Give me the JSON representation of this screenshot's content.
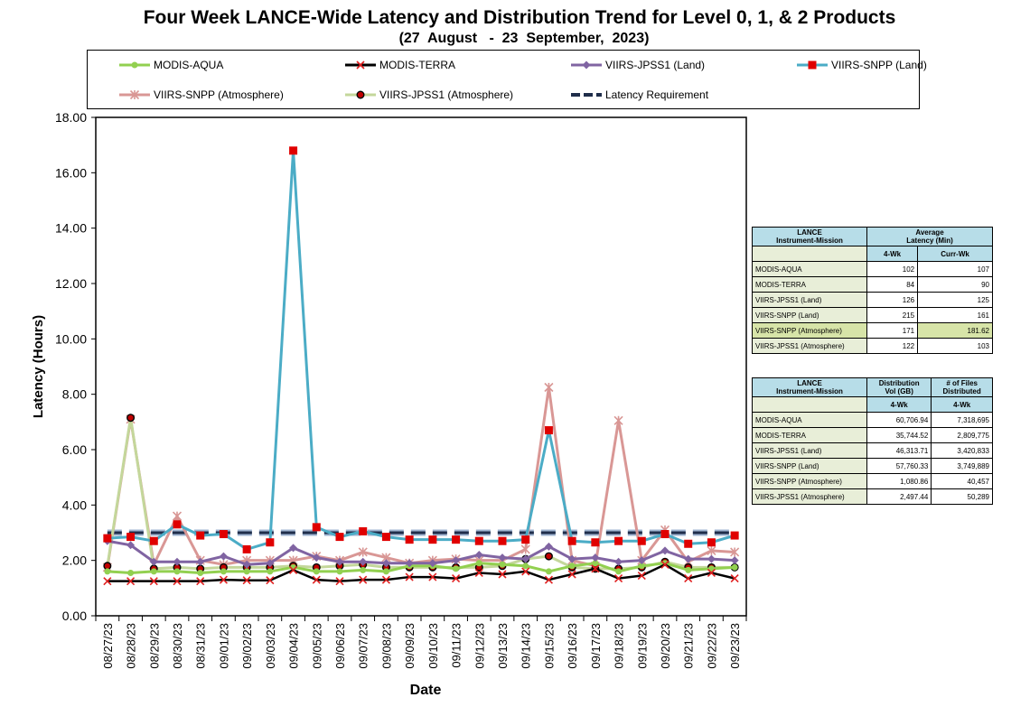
{
  "chart_data": {
    "type": "line",
    "title": "Four Week LANCE-Wide Latency and Distribution Trend for Level 0, 1, & 2 Products",
    "subtitle": "(27  August   -  23  September,  2023)",
    "xlabel": "Date",
    "ylabel": "Latency (Hours)",
    "ylim": [
      0,
      18
    ],
    "yticks": [
      "0.00",
      "2.00",
      "4.00",
      "6.00",
      "8.00",
      "10.00",
      "12.00",
      "14.00",
      "16.00",
      "18.00"
    ],
    "grid": false,
    "legend_position": "top",
    "categories": [
      "08/27/23",
      "08/28/23",
      "08/29/23",
      "08/30/23",
      "08/31/23",
      "09/01/23",
      "09/02/23",
      "09/03/23",
      "09/04/23",
      "09/05/23",
      "09/06/23",
      "09/07/23",
      "09/08/23",
      "09/09/23",
      "09/10/23",
      "09/11/23",
      "09/12/23",
      "09/13/23",
      "09/14/23",
      "09/15/23",
      "09/16/23",
      "09/17/23",
      "09/18/23",
      "09/19/23",
      "09/20/23",
      "09/21/23",
      "09/22/23",
      "09/23/23"
    ],
    "series": [
      {
        "name": "MODIS-AQUA",
        "color": "#92d050",
        "marker": "circle",
        "values": [
          1.6,
          1.55,
          1.6,
          1.6,
          1.55,
          1.6,
          1.6,
          1.6,
          1.75,
          1.6,
          1.6,
          1.65,
          1.6,
          1.8,
          1.8,
          1.7,
          1.9,
          1.85,
          1.8,
          1.6,
          1.8,
          1.9,
          1.6,
          1.8,
          1.9,
          1.65,
          1.7,
          1.75
        ]
      },
      {
        "name": "MODIS-TERRA",
        "color": "#000000",
        "marker": "x",
        "values": [
          1.25,
          1.25,
          1.25,
          1.25,
          1.25,
          1.3,
          1.28,
          1.28,
          1.65,
          1.3,
          1.25,
          1.3,
          1.3,
          1.4,
          1.4,
          1.35,
          1.55,
          1.5,
          1.6,
          1.3,
          1.5,
          1.7,
          1.35,
          1.45,
          1.85,
          1.35,
          1.55,
          1.35
        ]
      },
      {
        "name": "VIIRS-JPSS1 (Land)",
        "color": "#8064a2",
        "marker": "diamond",
        "values": [
          2.7,
          2.55,
          1.95,
          1.95,
          1.95,
          2.15,
          1.85,
          1.9,
          2.45,
          2.1,
          1.95,
          1.95,
          1.9,
          1.9,
          1.9,
          2.0,
          2.2,
          2.1,
          2.05,
          2.5,
          2.05,
          2.1,
          1.95,
          2.0,
          2.35,
          2.05,
          2.05,
          2.0
        ]
      },
      {
        "name": "VIIRS-SNPP (Land)",
        "color": "#4bacc6",
        "marker": "square",
        "values": [
          2.8,
          2.85,
          2.7,
          3.3,
          2.9,
          2.95,
          2.4,
          2.65,
          16.8,
          3.2,
          2.85,
          3.05,
          2.85,
          2.75,
          2.75,
          2.75,
          2.7,
          2.7,
          2.75,
          6.7,
          2.7,
          2.65,
          2.7,
          2.7,
          2.95,
          2.6,
          2.65,
          2.9
        ]
      },
      {
        "name": "VIIRS-SNPP (Atmosphere)",
        "color": "#d99795",
        "marker": "star",
        "values": [
          1.75,
          7.1,
          1.85,
          3.6,
          2.0,
          1.85,
          2.0,
          2.0,
          2.0,
          2.15,
          2.0,
          2.3,
          2.1,
          1.9,
          2.0,
          2.05,
          2.0,
          2.0,
          2.4,
          8.25,
          2.0,
          1.8,
          7.05,
          2.0,
          3.1,
          1.95,
          2.35,
          2.3
        ]
      },
      {
        "name": "VIIRS-JPSS1 (Atmosphere)",
        "color": "#c4d79b",
        "marker": "dot",
        "values": [
          1.8,
          7.15,
          1.7,
          1.75,
          1.7,
          1.75,
          1.75,
          1.75,
          1.8,
          1.75,
          1.8,
          1.85,
          1.75,
          1.75,
          1.75,
          1.75,
          1.75,
          1.8,
          2.05,
          2.15,
          1.75,
          1.7,
          1.7,
          1.75,
          1.95,
          1.75,
          1.75,
          1.75
        ]
      },
      {
        "name": "Latency Requirement",
        "color": "#1f3864",
        "marker": "dash",
        "values": [
          3,
          3,
          3,
          3,
          3,
          3,
          3,
          3,
          3,
          3,
          3,
          3,
          3,
          3,
          3,
          3,
          3,
          3,
          3,
          3,
          3,
          3,
          3,
          3,
          3,
          3,
          3,
          3
        ]
      }
    ]
  },
  "latency_table": {
    "col_header": "LANCE\nInstrument-Mission",
    "group_header": "Average\nLatency (Min)",
    "sub_headers": [
      "4-Wk",
      "Curr-Wk"
    ],
    "rows": [
      {
        "name": "MODIS-AQUA",
        "v1": "102",
        "v2": "107"
      },
      {
        "name": "MODIS-TERRA",
        "v1": "84",
        "v2": "90"
      },
      {
        "name": "VIIRS-JPSS1 (Land)",
        "v1": "126",
        "v2": "125"
      },
      {
        "name": "VIIRS-SNPP (Land)",
        "v1": "215",
        "v2": "161"
      },
      {
        "name": "VIIRS-SNPP (Atmosphere)",
        "v1": "171",
        "v2": "181.62"
      },
      {
        "name": "VIIRS-JPSS1 (Atmosphere)",
        "v1": "122",
        "v2": "103"
      }
    ]
  },
  "distribution_table": {
    "col_header": "LANCE\nInstrument-Mission",
    "header1": "Distribution\nVol (GB)",
    "header2": "# of Files\nDistributed",
    "sub_headers": [
      "4-Wk",
      "4-Wk"
    ],
    "rows": [
      {
        "name": "MODIS-AQUA",
        "v1": "60,706.94",
        "v2": "7,318,695"
      },
      {
        "name": "MODIS-TERRA",
        "v1": "35,744.52",
        "v2": "2,809,775"
      },
      {
        "name": "VIIRS-JPSS1 (Land)",
        "v1": "46,313.71",
        "v2": "3,420,833"
      },
      {
        "name": "VIIRS-SNPP (Land)",
        "v1": "57,760.33",
        "v2": "3,749,889"
      },
      {
        "name": "VIIRS-SNPP (Atmosphere)",
        "v1": "1,080.86",
        "v2": "40,457"
      },
      {
        "name": "VIIRS-JPSS1 (Atmosphere)",
        "v1": "2,497.44",
        "v2": "50,289"
      }
    ]
  }
}
